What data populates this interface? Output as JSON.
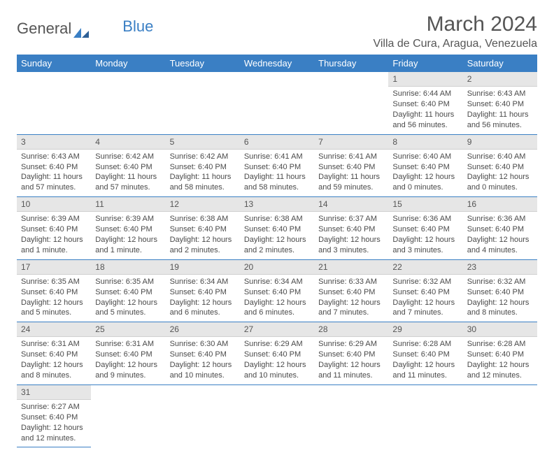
{
  "logo": {
    "text1": "General",
    "text2": "Blue"
  },
  "title": {
    "month": "March 2024",
    "location": "Villa de Cura, Aragua, Venezuela"
  },
  "weekdays": [
    "Sunday",
    "Monday",
    "Tuesday",
    "Wednesday",
    "Thursday",
    "Friday",
    "Saturday"
  ],
  "colors": {
    "header_bg": "#3a7fc4",
    "text": "#4a4a4a",
    "daynum_bg": "#e6e6e6"
  },
  "cells": [
    {
      "empty": true
    },
    {
      "empty": true
    },
    {
      "empty": true
    },
    {
      "empty": true
    },
    {
      "empty": true
    },
    {
      "day": "1",
      "sunrise": "Sunrise: 6:44 AM",
      "sunset": "Sunset: 6:40 PM",
      "daylight": "Daylight: 11 hours and 56 minutes."
    },
    {
      "day": "2",
      "sunrise": "Sunrise: 6:43 AM",
      "sunset": "Sunset: 6:40 PM",
      "daylight": "Daylight: 11 hours and 56 minutes."
    },
    {
      "day": "3",
      "sunrise": "Sunrise: 6:43 AM",
      "sunset": "Sunset: 6:40 PM",
      "daylight": "Daylight: 11 hours and 57 minutes."
    },
    {
      "day": "4",
      "sunrise": "Sunrise: 6:42 AM",
      "sunset": "Sunset: 6:40 PM",
      "daylight": "Daylight: 11 hours and 57 minutes."
    },
    {
      "day": "5",
      "sunrise": "Sunrise: 6:42 AM",
      "sunset": "Sunset: 6:40 PM",
      "daylight": "Daylight: 11 hours and 58 minutes."
    },
    {
      "day": "6",
      "sunrise": "Sunrise: 6:41 AM",
      "sunset": "Sunset: 6:40 PM",
      "daylight": "Daylight: 11 hours and 58 minutes."
    },
    {
      "day": "7",
      "sunrise": "Sunrise: 6:41 AM",
      "sunset": "Sunset: 6:40 PM",
      "daylight": "Daylight: 11 hours and 59 minutes."
    },
    {
      "day": "8",
      "sunrise": "Sunrise: 6:40 AM",
      "sunset": "Sunset: 6:40 PM",
      "daylight": "Daylight: 12 hours and 0 minutes."
    },
    {
      "day": "9",
      "sunrise": "Sunrise: 6:40 AM",
      "sunset": "Sunset: 6:40 PM",
      "daylight": "Daylight: 12 hours and 0 minutes."
    },
    {
      "day": "10",
      "sunrise": "Sunrise: 6:39 AM",
      "sunset": "Sunset: 6:40 PM",
      "daylight": "Daylight: 12 hours and 1 minute."
    },
    {
      "day": "11",
      "sunrise": "Sunrise: 6:39 AM",
      "sunset": "Sunset: 6:40 PM",
      "daylight": "Daylight: 12 hours and 1 minute."
    },
    {
      "day": "12",
      "sunrise": "Sunrise: 6:38 AM",
      "sunset": "Sunset: 6:40 PM",
      "daylight": "Daylight: 12 hours and 2 minutes."
    },
    {
      "day": "13",
      "sunrise": "Sunrise: 6:38 AM",
      "sunset": "Sunset: 6:40 PM",
      "daylight": "Daylight: 12 hours and 2 minutes."
    },
    {
      "day": "14",
      "sunrise": "Sunrise: 6:37 AM",
      "sunset": "Sunset: 6:40 PM",
      "daylight": "Daylight: 12 hours and 3 minutes."
    },
    {
      "day": "15",
      "sunrise": "Sunrise: 6:36 AM",
      "sunset": "Sunset: 6:40 PM",
      "daylight": "Daylight: 12 hours and 3 minutes."
    },
    {
      "day": "16",
      "sunrise": "Sunrise: 6:36 AM",
      "sunset": "Sunset: 6:40 PM",
      "daylight": "Daylight: 12 hours and 4 minutes."
    },
    {
      "day": "17",
      "sunrise": "Sunrise: 6:35 AM",
      "sunset": "Sunset: 6:40 PM",
      "daylight": "Daylight: 12 hours and 5 minutes."
    },
    {
      "day": "18",
      "sunrise": "Sunrise: 6:35 AM",
      "sunset": "Sunset: 6:40 PM",
      "daylight": "Daylight: 12 hours and 5 minutes."
    },
    {
      "day": "19",
      "sunrise": "Sunrise: 6:34 AM",
      "sunset": "Sunset: 6:40 PM",
      "daylight": "Daylight: 12 hours and 6 minutes."
    },
    {
      "day": "20",
      "sunrise": "Sunrise: 6:34 AM",
      "sunset": "Sunset: 6:40 PM",
      "daylight": "Daylight: 12 hours and 6 minutes."
    },
    {
      "day": "21",
      "sunrise": "Sunrise: 6:33 AM",
      "sunset": "Sunset: 6:40 PM",
      "daylight": "Daylight: 12 hours and 7 minutes."
    },
    {
      "day": "22",
      "sunrise": "Sunrise: 6:32 AM",
      "sunset": "Sunset: 6:40 PM",
      "daylight": "Daylight: 12 hours and 7 minutes."
    },
    {
      "day": "23",
      "sunrise": "Sunrise: 6:32 AM",
      "sunset": "Sunset: 6:40 PM",
      "daylight": "Daylight: 12 hours and 8 minutes."
    },
    {
      "day": "24",
      "sunrise": "Sunrise: 6:31 AM",
      "sunset": "Sunset: 6:40 PM",
      "daylight": "Daylight: 12 hours and 8 minutes."
    },
    {
      "day": "25",
      "sunrise": "Sunrise: 6:31 AM",
      "sunset": "Sunset: 6:40 PM",
      "daylight": "Daylight: 12 hours and 9 minutes."
    },
    {
      "day": "26",
      "sunrise": "Sunrise: 6:30 AM",
      "sunset": "Sunset: 6:40 PM",
      "daylight": "Daylight: 12 hours and 10 minutes."
    },
    {
      "day": "27",
      "sunrise": "Sunrise: 6:29 AM",
      "sunset": "Sunset: 6:40 PM",
      "daylight": "Daylight: 12 hours and 10 minutes."
    },
    {
      "day": "28",
      "sunrise": "Sunrise: 6:29 AM",
      "sunset": "Sunset: 6:40 PM",
      "daylight": "Daylight: 12 hours and 11 minutes."
    },
    {
      "day": "29",
      "sunrise": "Sunrise: 6:28 AM",
      "sunset": "Sunset: 6:40 PM",
      "daylight": "Daylight: 12 hours and 11 minutes."
    },
    {
      "day": "30",
      "sunrise": "Sunrise: 6:28 AM",
      "sunset": "Sunset: 6:40 PM",
      "daylight": "Daylight: 12 hours and 12 minutes."
    },
    {
      "day": "31",
      "sunrise": "Sunrise: 6:27 AM",
      "sunset": "Sunset: 6:40 PM",
      "daylight": "Daylight: 12 hours and 12 minutes."
    },
    {
      "empty": true
    },
    {
      "empty": true
    },
    {
      "empty": true
    },
    {
      "empty": true
    },
    {
      "empty": true
    },
    {
      "empty": true
    }
  ]
}
